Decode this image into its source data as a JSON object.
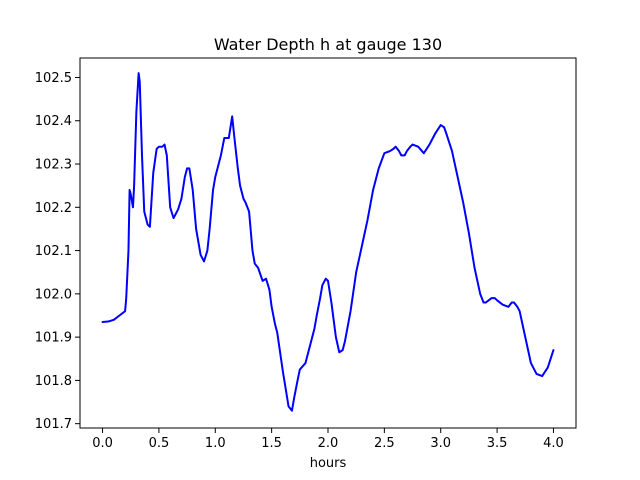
{
  "chart_data": {
    "type": "line",
    "title": "Water Depth h at gauge 130",
    "xlabel": "hours",
    "ylabel": "",
    "xlim": [
      -0.2,
      4.2
    ],
    "ylim": [
      101.69,
      102.545
    ],
    "x_ticks": [
      0.0,
      0.5,
      1.0,
      1.5,
      2.0,
      2.5,
      3.0,
      3.5,
      4.0
    ],
    "x_tick_labels": [
      "0.0",
      "0.5",
      "1.0",
      "1.5",
      "2.0",
      "2.5",
      "3.0",
      "3.5",
      "4.0"
    ],
    "y_ticks": [
      101.7,
      101.8,
      101.9,
      102.0,
      102.1,
      102.2,
      102.3,
      102.4,
      102.5
    ],
    "y_tick_labels": [
      "101.7",
      "101.8",
      "101.9",
      "102.0",
      "102.1",
      "102.2",
      "102.3",
      "102.4",
      "102.5"
    ],
    "grid": false,
    "legend": "none",
    "series": [
      {
        "color": "#0000ff",
        "x": [
          0.0,
          0.05,
          0.1,
          0.15,
          0.2,
          0.21,
          0.23,
          0.24,
          0.25,
          0.27,
          0.28,
          0.3,
          0.32,
          0.33,
          0.35,
          0.37,
          0.4,
          0.42,
          0.45,
          0.48,
          0.5,
          0.53,
          0.55,
          0.57,
          0.6,
          0.63,
          0.67,
          0.7,
          0.73,
          0.75,
          0.77,
          0.8,
          0.83,
          0.87,
          0.9,
          0.93,
          0.95,
          0.98,
          1.0,
          1.05,
          1.08,
          1.12,
          1.15,
          1.17,
          1.2,
          1.22,
          1.25,
          1.27,
          1.3,
          1.33,
          1.35,
          1.38,
          1.42,
          1.45,
          1.48,
          1.5,
          1.53,
          1.55,
          1.6,
          1.65,
          1.68,
          1.7,
          1.73,
          1.75,
          1.8,
          1.85,
          1.88,
          1.9,
          1.93,
          1.95,
          1.98,
          2.0,
          2.03,
          2.05,
          2.07,
          2.1,
          2.13,
          2.15,
          2.2,
          2.25,
          2.3,
          2.35,
          2.4,
          2.45,
          2.5,
          2.55,
          2.58,
          2.6,
          2.63,
          2.65,
          2.68,
          2.7,
          2.73,
          2.75,
          2.8,
          2.85,
          2.9,
          2.95,
          3.0,
          3.03,
          3.05,
          3.1,
          3.15,
          3.2,
          3.25,
          3.3,
          3.35,
          3.38,
          3.4,
          3.45,
          3.48,
          3.5,
          3.55,
          3.6,
          3.63,
          3.65,
          3.68,
          3.7,
          3.75,
          3.8,
          3.85,
          3.9,
          3.95,
          4.0
        ],
        "y": [
          101.935,
          101.936,
          101.94,
          101.95,
          101.96,
          101.99,
          102.1,
          102.24,
          102.23,
          102.2,
          102.25,
          102.42,
          102.51,
          102.49,
          102.32,
          102.19,
          102.16,
          102.155,
          102.28,
          102.335,
          102.34,
          102.34,
          102.345,
          102.32,
          102.2,
          102.175,
          102.195,
          102.22,
          102.27,
          102.29,
          102.29,
          102.24,
          102.15,
          102.09,
          102.075,
          102.1,
          102.15,
          102.24,
          102.27,
          102.32,
          102.36,
          102.36,
          102.41,
          102.36,
          102.29,
          102.25,
          102.22,
          102.21,
          102.19,
          102.1,
          102.07,
          102.06,
          102.03,
          102.035,
          102.01,
          101.97,
          101.93,
          101.91,
          101.82,
          101.74,
          101.73,
          101.76,
          101.8,
          101.825,
          101.84,
          101.89,
          101.92,
          101.95,
          101.99,
          102.02,
          102.035,
          102.03,
          101.98,
          101.94,
          101.9,
          101.865,
          101.87,
          101.89,
          101.96,
          102.05,
          102.11,
          102.17,
          102.24,
          102.29,
          102.325,
          102.33,
          102.335,
          102.34,
          102.33,
          102.32,
          102.32,
          102.33,
          102.34,
          102.345,
          102.34,
          102.325,
          102.345,
          102.37,
          102.39,
          102.385,
          102.37,
          102.33,
          102.27,
          102.21,
          102.14,
          102.06,
          102.0,
          101.98,
          101.98,
          101.99,
          101.99,
          101.985,
          101.975,
          101.97,
          101.98,
          101.98,
          101.97,
          101.96,
          101.9,
          101.84,
          101.815,
          101.81,
          101.83,
          101.87
        ]
      }
    ]
  }
}
